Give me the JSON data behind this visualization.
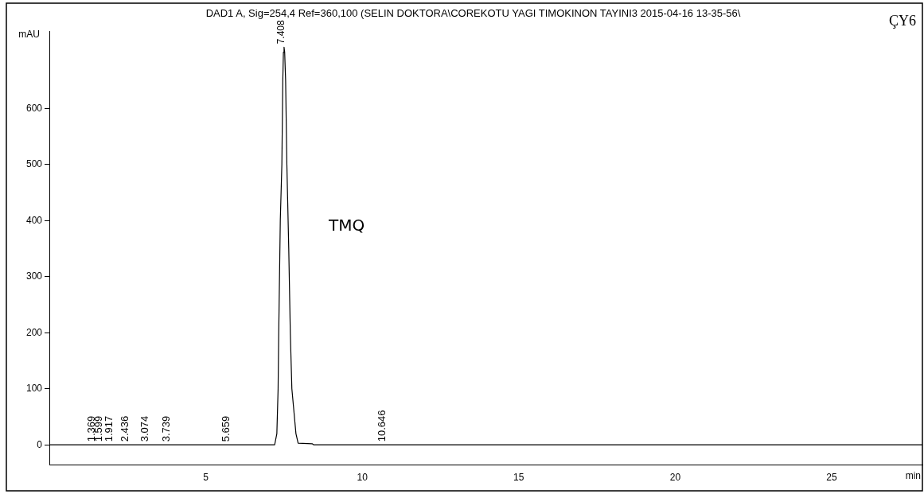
{
  "chart_data": {
    "type": "line",
    "title": "DAD1 A, Sig=254,4 Ref=360,100 (SELIN DOKTORA\\COREKOTU YAGI TIMOKINON TAYINI3 2015-04-16 13-35-56\\",
    "xlabel": "min",
    "ylabel": "mAU",
    "series": [
      {
        "color": "#000000",
        "x": [
          0,
          7.2,
          7.27,
          7.31,
          7.33,
          7.38,
          7.43,
          7.46,
          7.48,
          7.5,
          7.52,
          7.55,
          7.59,
          7.65,
          7.7,
          7.75,
          7.88,
          7.95,
          8.4,
          8.45,
          27.9
        ],
        "values": [
          0,
          0,
          20,
          100,
          200,
          400,
          500,
          650,
          700,
          709,
          700,
          650,
          500,
          350,
          200,
          100,
          20,
          3,
          2,
          0,
          0
        ]
      }
    ],
    "xlim": [
      0,
      27.9
    ],
    "xticks": [
      5,
      10,
      15,
      20,
      25
    ],
    "ylim": [
      -36,
      737
    ],
    "yticks": [
      0,
      100,
      200,
      300,
      400,
      500,
      600
    ],
    "grid": false,
    "legend": false,
    "marker": "none",
    "line_style": "solid",
    "annotations": [
      {
        "text": "1.369",
        "x": 1.369,
        "y": 0
      },
      {
        "text": "1.599",
        "x": 1.599,
        "y": 0
      },
      {
        "text": "1.917",
        "x": 1.917,
        "y": 0
      },
      {
        "text": "2.436",
        "x": 2.436,
        "y": 0
      },
      {
        "text": "3.074",
        "x": 3.074,
        "y": 0
      },
      {
        "text": "3.739",
        "x": 3.739,
        "y": 0
      },
      {
        "text": "5.659",
        "x": 5.659,
        "y": 0
      },
      {
        "text": "7.408",
        "x": 7.408,
        "y": 709
      },
      {
        "text": "10.646",
        "x": 10.646,
        "y": 0
      },
      "TMQ",
      "ÇY6"
    ]
  }
}
